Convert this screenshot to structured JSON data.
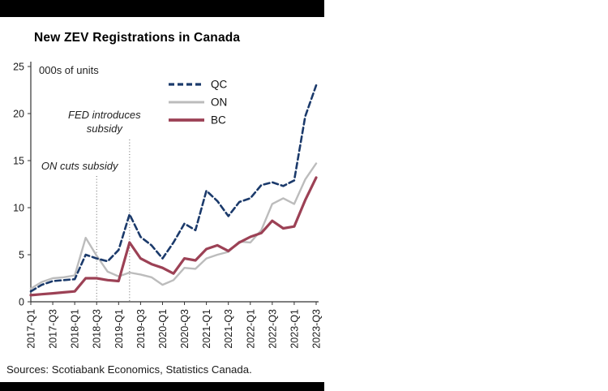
{
  "page": {
    "background": "#ffffff",
    "bar_color": "#000000"
  },
  "chart_data": {
    "type": "line",
    "title": "New ZEV Registrations in Canada",
    "unit_label": "000s of units",
    "source": "Sources: Scotiabank Economics, Statistics Canada.",
    "ylim": [
      0,
      25
    ],
    "yticks": [
      0,
      5,
      10,
      15,
      20,
      25
    ],
    "x": [
      "2017-Q1",
      "2017-Q2",
      "2017-Q3",
      "2017-Q4",
      "2018-Q1",
      "2018-Q2",
      "2018-Q3",
      "2018-Q4",
      "2019-Q1",
      "2019-Q2",
      "2019-Q3",
      "2019-Q4",
      "2020-Q1",
      "2020-Q2",
      "2020-Q3",
      "2020-Q4",
      "2021-Q1",
      "2021-Q2",
      "2021-Q3",
      "2021-Q4",
      "2022-Q1",
      "2022-Q2",
      "2022-Q3",
      "2022-Q4",
      "2023-Q1",
      "2023-Q2",
      "2023-Q3"
    ],
    "x_tick_every": 2,
    "grid": false,
    "legend_position": "top-center",
    "series": [
      {
        "name": "QC",
        "color": "#1b3a6b",
        "dash": "7 4",
        "width": 2.6,
        "values": [
          1.1,
          1.8,
          2.2,
          2.3,
          2.4,
          5.0,
          4.6,
          4.3,
          5.5,
          9.3,
          6.9,
          6.0,
          4.6,
          6.3,
          8.3,
          7.6,
          11.8,
          10.7,
          9.1,
          10.6,
          11.0,
          12.4,
          12.7,
          12.3,
          12.9,
          19.7,
          23.0
        ]
      },
      {
        "name": "ON",
        "color": "#bcbcbc",
        "dash": "",
        "width": 2.4,
        "values": [
          1.4,
          2.1,
          2.5,
          2.6,
          2.8,
          6.8,
          4.9,
          3.2,
          2.7,
          3.1,
          2.9,
          2.6,
          1.8,
          2.3,
          3.6,
          3.5,
          4.6,
          5.0,
          5.3,
          6.4,
          6.3,
          7.6,
          10.4,
          11.0,
          10.4,
          13.0,
          14.7
        ]
      },
      {
        "name": "BC",
        "color": "#9c4155",
        "dash": "",
        "width": 3.2,
        "values": [
          0.7,
          0.8,
          0.9,
          1.0,
          1.1,
          2.5,
          2.5,
          2.3,
          2.2,
          6.3,
          4.6,
          4.0,
          3.6,
          3.0,
          4.6,
          4.4,
          5.6,
          6.0,
          5.4,
          6.3,
          6.9,
          7.3,
          8.6,
          7.8,
          8.0,
          10.8,
          13.2
        ]
      }
    ],
    "draw_order": [
      1,
      2,
      0
    ],
    "annotations": [
      {
        "lines": [
          "FED introduces",
          "subsidy"
        ],
        "x_index": 9,
        "text_dx": -31,
        "text_y": 80,
        "line_top": 106
      },
      {
        "lines": [
          "ON cuts subsidy"
        ],
        "x_index": 6,
        "text_dx": -21,
        "text_y": 143,
        "line_top": 151
      }
    ]
  }
}
